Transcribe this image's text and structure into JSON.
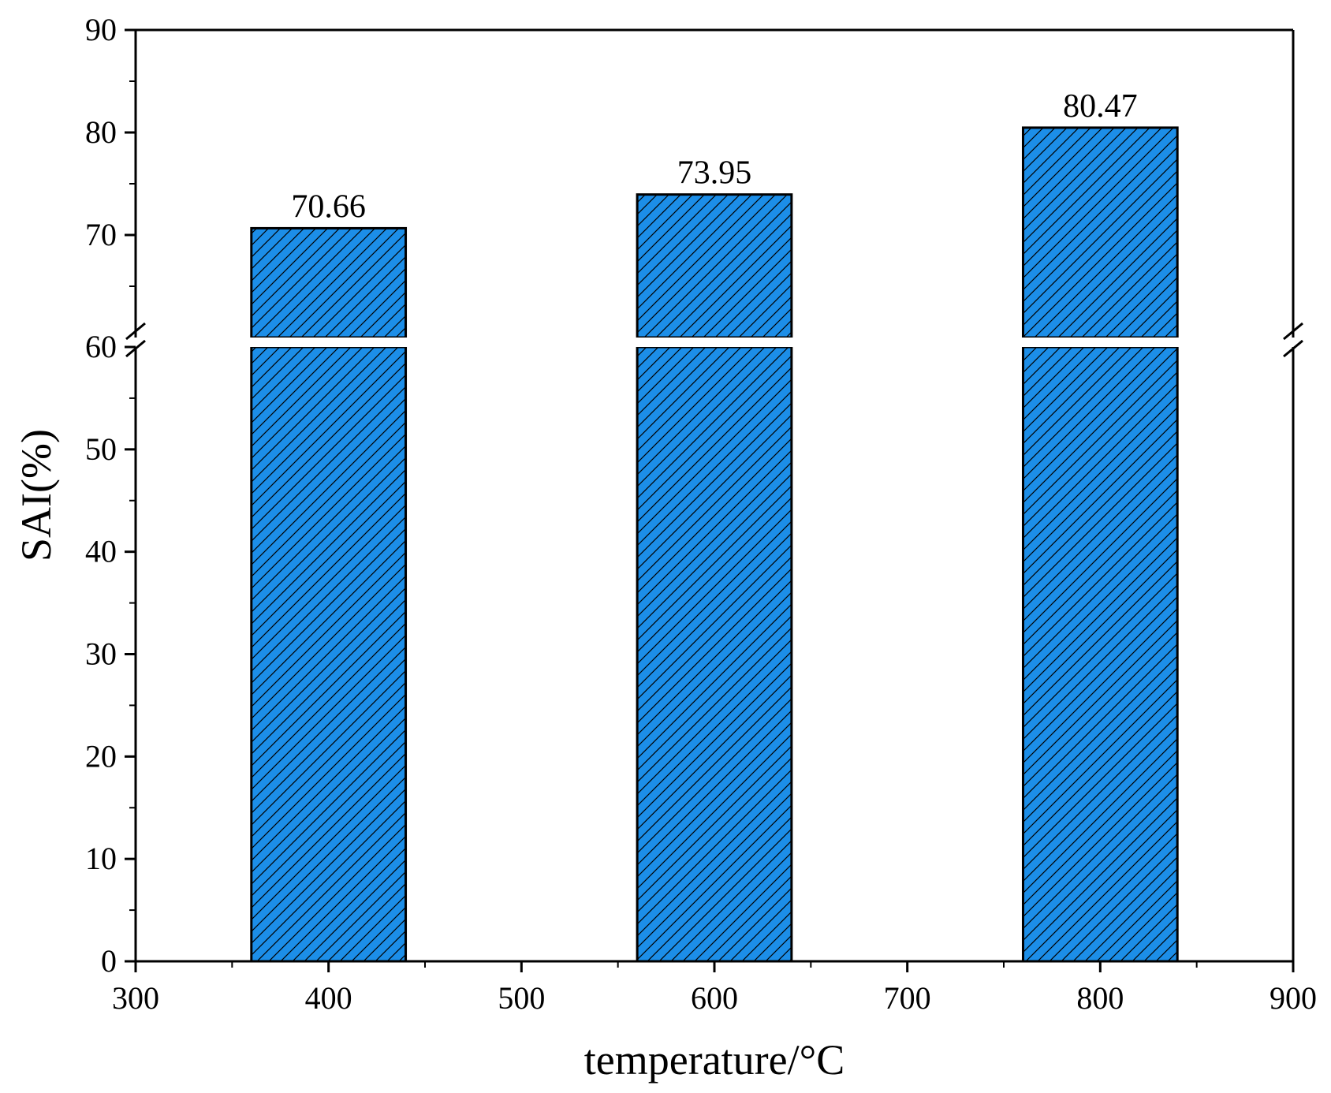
{
  "chart_data": {
    "type": "bar",
    "xlabel": "temperature/°C",
    "ylabel": "SAI(%)",
    "x": [
      400,
      600,
      800
    ],
    "values": [
      70.66,
      73.95,
      80.47
    ],
    "data_labels": [
      "70.66",
      "73.95",
      "80.47"
    ],
    "bar_width": 80,
    "xlim": [
      300,
      900
    ],
    "x_ticks": [
      300,
      400,
      500,
      600,
      700,
      800,
      900
    ],
    "y_axis_segments": [
      {
        "range": [
          0,
          60
        ],
        "ticks": [
          0,
          10,
          20,
          30,
          40,
          50
        ]
      },
      {
        "range": [
          60,
          90
        ],
        "ticks": [
          60,
          70,
          80,
          90
        ]
      }
    ],
    "y_break_at": 60,
    "bar_fill": "#1C8EE8",
    "bar_pattern": "diagonal-hatch",
    "grid": false,
    "legend": "none"
  }
}
